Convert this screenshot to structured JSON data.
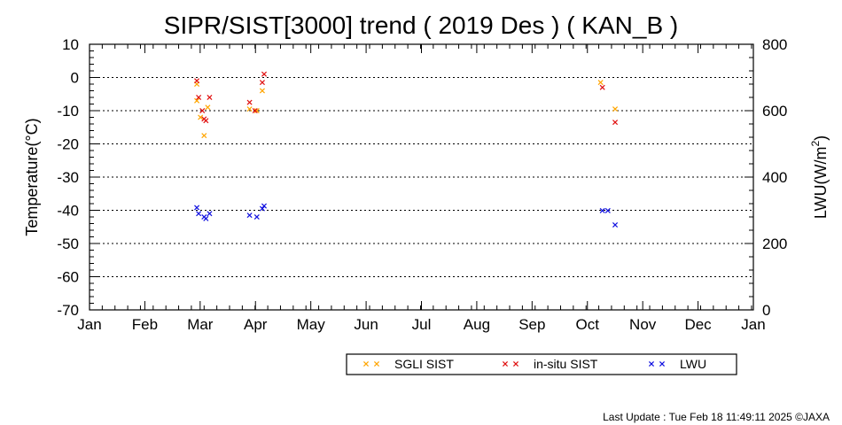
{
  "chart_data": {
    "type": "scatter",
    "title": "SIPR/SIST[3000] trend ( 2019 Des ) ( KAN_B )",
    "ylabel": "Temperature(°C)",
    "y2label_main": "LWU(W/m",
    "y2label_sup": "2",
    "y2label_end": ")",
    "ylim": [
      -70,
      10
    ],
    "y2lim": [
      0,
      800
    ],
    "yticks": [
      "10",
      "0",
      "-10",
      "-20",
      "-30",
      "-40",
      "-50",
      "-60",
      "-70"
    ],
    "y2ticks": [
      "800",
      "600",
      "400",
      "200",
      "0"
    ],
    "months": [
      "Jan",
      "Feb",
      "Mar",
      "Apr",
      "May",
      "Jun",
      "Jul",
      "Aug",
      "Sep",
      "Oct",
      "Nov",
      "Dec",
      "Jan"
    ],
    "grid": "horizontal-dotted",
    "legend_position": "bottom",
    "series": [
      {
        "name": "SGLI SIST",
        "color": "#ffa500",
        "axis": "left",
        "points": [
          {
            "x": "2019-03-01",
            "y": -2
          },
          {
            "x": "2019-03-01",
            "y": -7
          },
          {
            "x": "2019-03-03",
            "y": -12
          },
          {
            "x": "2019-03-05",
            "y": -17.5
          },
          {
            "x": "2019-03-07",
            "y": -9
          },
          {
            "x": "2019-03-30",
            "y": -9.5
          },
          {
            "x": "2019-04-03",
            "y": -10
          },
          {
            "x": "2019-04-06",
            "y": -4
          },
          {
            "x": "2019-10-09",
            "y": -1.5
          },
          {
            "x": "2019-10-17",
            "y": -9.5
          }
        ]
      },
      {
        "name": "in-situ SIST",
        "color": "#e01010",
        "axis": "left",
        "points": [
          {
            "x": "2019-03-01",
            "y": -1
          },
          {
            "x": "2019-03-02",
            "y": -6
          },
          {
            "x": "2019-03-04",
            "y": -10
          },
          {
            "x": "2019-03-05",
            "y": -12.5
          },
          {
            "x": "2019-03-06",
            "y": -13
          },
          {
            "x": "2019-03-08",
            "y": -6
          },
          {
            "x": "2019-03-30",
            "y": -7.5
          },
          {
            "x": "2019-04-02",
            "y": -10
          },
          {
            "x": "2019-04-06",
            "y": -1.5
          },
          {
            "x": "2019-04-07",
            "y": 1
          },
          {
            "x": "2019-10-10",
            "y": -3
          },
          {
            "x": "2019-10-17",
            "y": -13.5
          }
        ]
      },
      {
        "name": "LWU",
        "color": "#1010e0",
        "axis": "right",
        "points": [
          {
            "x": "2019-03-01",
            "y": 308
          },
          {
            "x": "2019-03-02",
            "y": 290
          },
          {
            "x": "2019-03-05",
            "y": 280
          },
          {
            "x": "2019-03-06",
            "y": 275
          },
          {
            "x": "2019-03-08",
            "y": 290
          },
          {
            "x": "2019-03-30",
            "y": 285
          },
          {
            "x": "2019-04-03",
            "y": 280
          },
          {
            "x": "2019-04-06",
            "y": 305
          },
          {
            "x": "2019-04-07",
            "y": 313
          },
          {
            "x": "2019-10-10",
            "y": 299
          },
          {
            "x": "2019-10-13",
            "y": 299
          },
          {
            "x": "2019-10-17",
            "y": 256
          }
        ]
      }
    ]
  },
  "footer": {
    "last_update": "Last Update : Tue Feb 18 11:49:11 2025  ©JAXA"
  }
}
